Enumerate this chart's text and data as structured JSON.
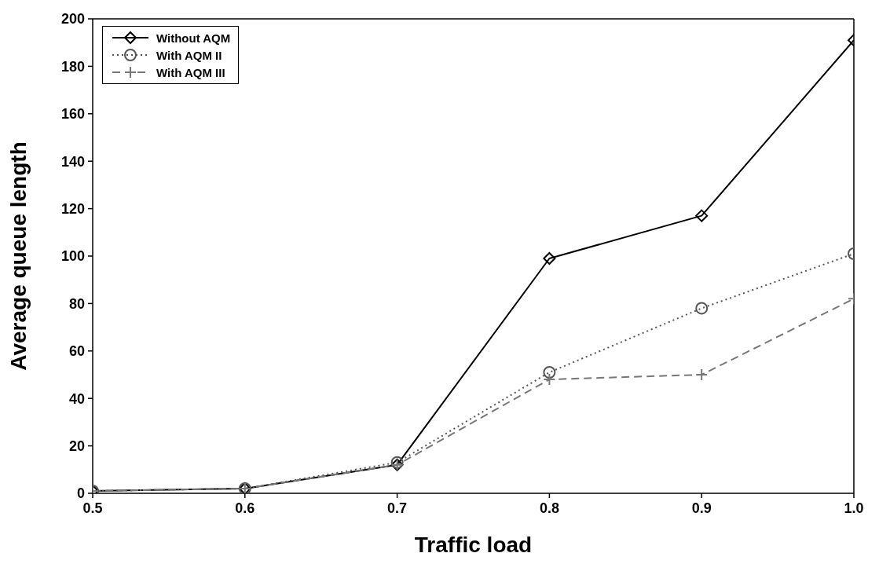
{
  "chart_data": {
    "type": "line",
    "xlabel": "Traffic load",
    "ylabel": "Average queue length",
    "x": [
      0.5,
      0.6,
      0.7,
      0.8,
      0.9,
      1.0
    ],
    "series": [
      {
        "name": "Without AQM",
        "color": "#000000",
        "values": [
          1,
          2,
          12,
          99,
          117,
          191
        ],
        "marker": "diamond",
        "line_style": "solid"
      },
      {
        "name": "With AQM II",
        "color": "#555555",
        "values": [
          1,
          2,
          13,
          51,
          78,
          101
        ],
        "marker": "circle",
        "line_style": "dotted"
      },
      {
        "name": "With AQM III",
        "color": "#777777",
        "values": [
          1,
          2,
          12,
          48,
          50,
          82
        ],
        "marker": "cross",
        "line_style": "dashed"
      }
    ],
    "xlim": [
      0.5,
      1.0
    ],
    "xticks": [
      0.5,
      0.6,
      0.7,
      0.8,
      0.9,
      {
        "value": 1.0,
        "label": "1.0"
      }
    ],
    "ylim": [
      0,
      200
    ],
    "yticks": [
      0,
      20,
      40,
      60,
      80,
      100,
      120,
      140,
      160,
      180,
      200
    ],
    "grid": false,
    "legend": "top left"
  }
}
